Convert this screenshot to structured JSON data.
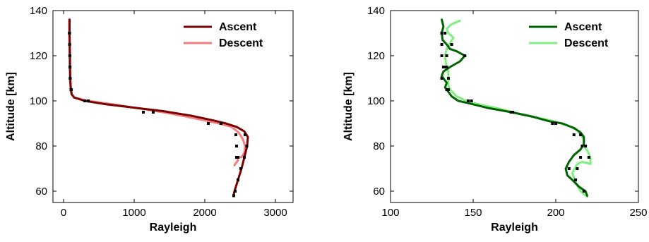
{
  "chart_data": [
    {
      "type": "line",
      "xlabel": "Rayleigh",
      "ylabel": "Altitude [km]",
      "xlim": [
        -150,
        3250
      ],
      "ylim": [
        55,
        140
      ],
      "xticks": [
        0,
        1000,
        2000,
        3000
      ],
      "yticks": [
        60,
        80,
        100,
        120,
        140
      ],
      "grid": false,
      "legend_position": "top-right",
      "colors": {
        "Ascent": "#7b0000",
        "Descent": "#f08080"
      },
      "series": [
        {
          "name": "Ascent",
          "x": [
            85,
            85,
            88,
            90,
            92,
            95,
            100,
            105,
            115,
            150,
            300,
            600,
            1000,
            1400,
            1800,
            2100,
            2300,
            2450,
            2560,
            2610,
            2600,
            2560,
            2520,
            2480,
            2450,
            2420,
            2405
          ],
          "y": [
            136,
            130,
            125,
            120,
            115,
            110,
            107,
            105,
            103,
            101.5,
            100,
            98.5,
            97,
            95.5,
            93.5,
            91.5,
            90,
            88.5,
            86.5,
            84,
            80,
            75,
            70,
            66,
            63,
            60,
            58
          ]
        },
        {
          "name": "Descent",
          "x": [
            80,
            80,
            82,
            85,
            87,
            90,
            95,
            100,
            110,
            150,
            350,
            700,
            1100,
            1500,
            1900,
            2200,
            2380,
            2480,
            2540,
            2570,
            2560,
            2520,
            2460,
            2470,
            2440,
            2420
          ],
          "y": [
            136,
            130,
            125,
            120,
            115,
            110,
            107,
            105,
            103,
            101.5,
            100,
            98.5,
            96.5,
            94.5,
            92,
            90,
            88.5,
            86,
            83,
            80,
            77,
            75,
            75,
            73.5,
            72.5,
            71.5
          ]
        }
      ],
      "markers": {
        "Ascent": {
          "x": [
            85,
            87,
            90,
            92,
            95,
            110,
            300,
            1130,
            2050,
            2570,
            2595,
            2560,
            2510,
            2470,
            2430,
            2410
          ],
          "y": [
            130,
            125,
            120,
            115,
            110,
            105,
            100,
            95,
            90,
            85,
            80,
            75,
            70,
            65,
            60,
            58
          ]
        },
        "Descent": {
          "x": [
            82,
            85,
            88,
            90,
            93,
            105,
            350,
            1270,
            2230,
            2440,
            2450,
            2470,
            2450
          ],
          "y": [
            130,
            125,
            120,
            115,
            110,
            105,
            100,
            95,
            90,
            85,
            80,
            75,
            75
          ]
        }
      }
    },
    {
      "type": "line",
      "xlabel": "Rayleigh",
      "ylabel": "Altitude [km]",
      "xlim": [
        100,
        250
      ],
      "ylim": [
        55,
        140
      ],
      "xticks": [
        100,
        150,
        200,
        250
      ],
      "yticks": [
        60,
        80,
        100,
        120,
        140
      ],
      "grid": false,
      "legend_position": "top-right",
      "colors": {
        "Ascent": "#006400",
        "Descent": "#80ee80"
      },
      "series": [
        {
          "name": "Ascent",
          "x": [
            131,
            132,
            131,
            131.5,
            134,
            136,
            140,
            145,
            142,
            136,
            132,
            131,
            132,
            134,
            133,
            134,
            137,
            141,
            147,
            158,
            173,
            186,
            196,
            204,
            211,
            215,
            217,
            217,
            215,
            211,
            208,
            206,
            207,
            210,
            214,
            218,
            219
          ],
          "y": [
            136,
            133,
            130,
            127,
            125,
            123,
            122,
            120,
            117.5,
            115,
            113,
            111,
            110,
            108,
            106,
            105,
            102,
            100,
            99,
            97,
            95,
            93,
            91,
            90,
            88,
            86,
            84,
            81,
            78.5,
            76,
            73,
            70,
            67,
            65,
            62,
            60,
            58
          ]
        },
        {
          "name": "Descent",
          "x": [
            142,
            137,
            134,
            135,
            138,
            136,
            134,
            133,
            133.5,
            134,
            135,
            135,
            135,
            136,
            140,
            146,
            153,
            163,
            174,
            186,
            196,
            203,
            209,
            213,
            215,
            217,
            217,
            219,
            221,
            221,
            219,
            216,
            213,
            210,
            212,
            215,
            219
          ],
          "y": [
            135.5,
            134,
            132,
            130,
            128,
            125.5,
            123,
            120,
            117,
            115,
            113,
            110,
            107,
            105,
            102,
            100,
            98.5,
            97,
            95,
            93,
            91.5,
            90,
            88.5,
            87,
            85,
            83,
            80,
            78,
            75,
            72,
            72.5,
            73,
            72,
            68,
            64,
            60,
            57.5
          ]
        }
      ],
      "markers": {
        "Ascent": {
          "x": [
            131,
            131,
            131,
            132,
            131,
            134,
            145,
            133,
            149,
            174,
            198,
            211,
            216,
            215,
            208,
            212,
            217
          ],
          "y": [
            130,
            125,
            120,
            115,
            110,
            105,
            120,
            115,
            100,
            95,
            90,
            85,
            80,
            75,
            70,
            65,
            60
          ]
        },
        "Descent": {
          "x": [
            133,
            137,
            134,
            134,
            135,
            135,
            147,
            173,
            200,
            215,
            218,
            220,
            213
          ],
          "y": [
            130,
            125,
            120,
            115,
            110,
            105,
            100,
            95,
            90,
            85,
            80,
            75,
            70
          ]
        }
      }
    }
  ]
}
